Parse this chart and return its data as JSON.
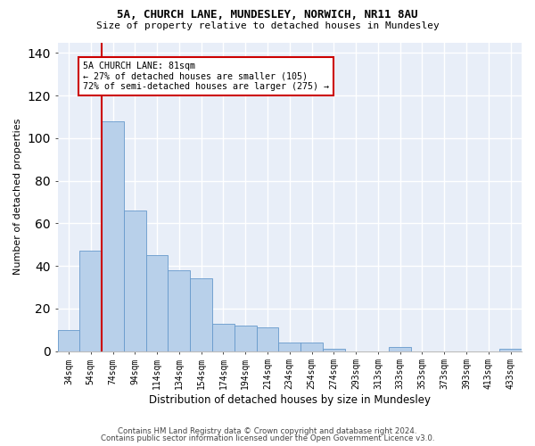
{
  "title1": "5A, CHURCH LANE, MUNDESLEY, NORWICH, NR11 8AU",
  "title2": "Size of property relative to detached houses in Mundesley",
  "xlabel": "Distribution of detached houses by size in Mundesley",
  "ylabel": "Number of detached properties",
  "bar_color": "#b8d0ea",
  "bar_edge_color": "#6699cc",
  "background_color": "#e8eef8",
  "grid_color": "#ffffff",
  "categories": [
    "34sqm",
    "54sqm",
    "74sqm",
    "94sqm",
    "114sqm",
    "134sqm",
    "154sqm",
    "174sqm",
    "194sqm",
    "214sqm",
    "234sqm",
    "254sqm",
    "274sqm",
    "293sqm",
    "313sqm",
    "333sqm",
    "353sqm",
    "373sqm",
    "393sqm",
    "413sqm",
    "433sqm"
  ],
  "values": [
    10,
    47,
    108,
    66,
    45,
    38,
    34,
    13,
    12,
    11,
    4,
    4,
    1,
    0,
    0,
    2,
    0,
    0,
    0,
    0,
    1
  ],
  "annotation_text": "5A CHURCH LANE: 81sqm\n← 27% of detached houses are smaller (105)\n72% of semi-detached houses are larger (275) →",
  "vline_index": 2,
  "vline_color": "#cc0000",
  "footer1": "Contains HM Land Registry data © Crown copyright and database right 2024.",
  "footer2": "Contains public sector information licensed under the Open Government Licence v3.0.",
  "ylim": [
    0,
    145
  ],
  "yticks": [
    0,
    20,
    40,
    60,
    80,
    100,
    120,
    140
  ]
}
